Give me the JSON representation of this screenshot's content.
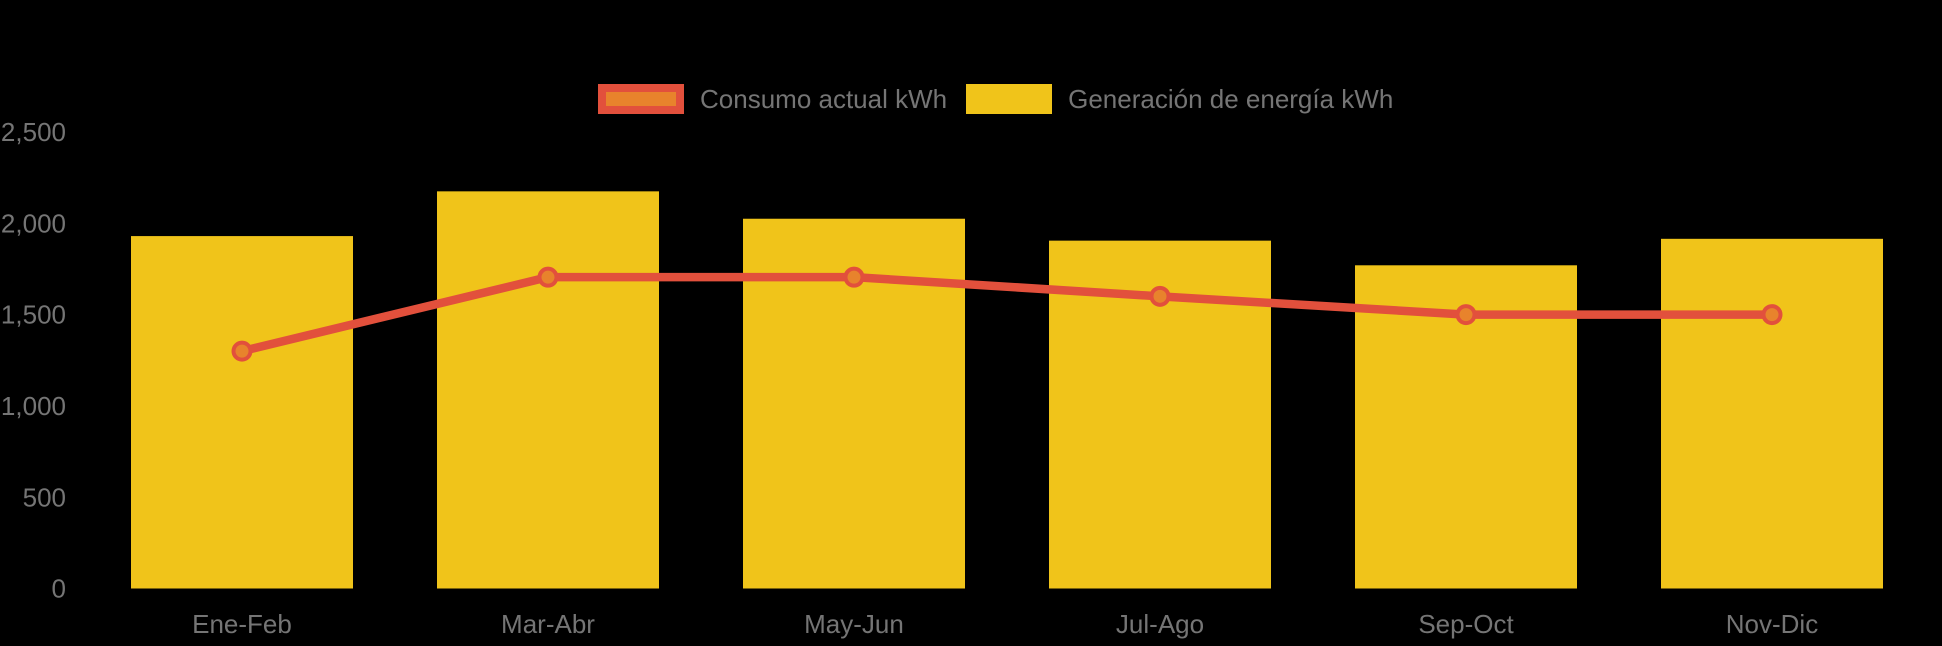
{
  "page": {
    "background_color": "#000000",
    "text_color": "#757575"
  },
  "legend": {
    "items": [
      {
        "id": "consumo",
        "label": "Consumo actual kWh",
        "swatch_fill": "#E8832C",
        "swatch_border": "#E2503C"
      },
      {
        "id": "generacion",
        "label": "Generación de energía kWh",
        "swatch_fill": "#F0C41A",
        "swatch_border": "#F0C41A"
      }
    ]
  },
  "chart_data": {
    "type": "bar+line",
    "title": "",
    "xlabel": "",
    "ylabel": "",
    "categories": [
      "Ene-Feb",
      "Mar-Abr",
      "May-Jun",
      "Jul-Ago",
      "Sep-Oct",
      "Nov-Dic"
    ],
    "series": [
      {
        "name": "Generación de energía kWh",
        "type": "bar",
        "color": "#F0C41A",
        "values": [
          1930,
          2175,
          2025,
          1905,
          1770,
          1915
        ]
      },
      {
        "name": "Consumo actual kWh",
        "type": "line",
        "color": "#E2503C",
        "marker_fill": "#E8832C",
        "values": [
          1300,
          1705,
          1705,
          1600,
          1500,
          1500
        ]
      }
    ],
    "y_axis": {
      "min": 0,
      "max": 2500,
      "ticks": [
        0,
        500,
        1000,
        1500,
        2000,
        2500
      ],
      "tick_labels": [
        "0",
        "500",
        "1,000",
        "1,500",
        "2,000",
        "2,500"
      ]
    },
    "grid": false,
    "legend_position": "top-center",
    "axis_text_color": "#757575"
  }
}
